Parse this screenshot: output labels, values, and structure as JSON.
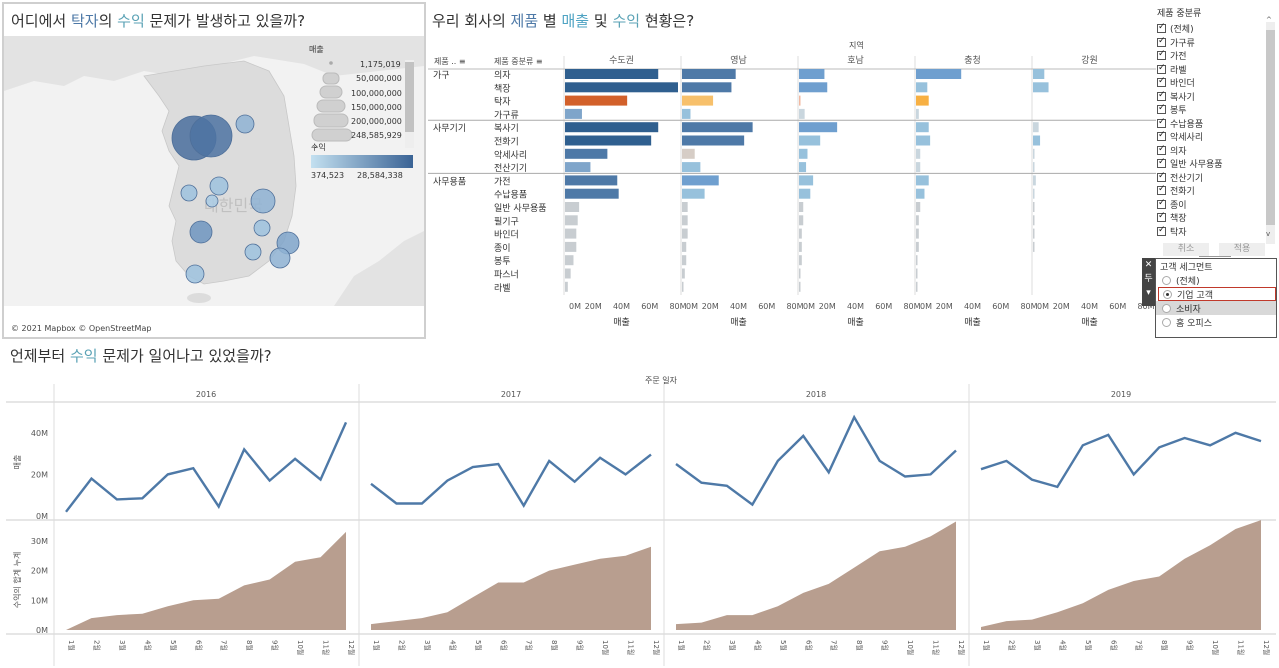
{
  "map": {
    "title_parts": [
      "어디에서 ",
      "탁자",
      "의 ",
      "수익",
      " 문제가 발생하고 있을까?"
    ],
    "watermark": "대한민국",
    "attribution": "© 2021 Mapbox © OpenStreetMap",
    "size_legend": {
      "title": "매출",
      "values": [
        "1,175,019",
        "50,000,000",
        "100,000,000",
        "150,000,000",
        "200,000,000",
        "248,585,929"
      ]
    },
    "color_legend": {
      "title": "수익",
      "min": "374,523",
      "max": "28,584,338"
    }
  },
  "bars": {
    "title_parts": [
      "우리 회사의 ",
      "제품",
      " 별 ",
      "매출",
      " 및 ",
      "수익",
      " 현황은?"
    ],
    "region_header": "지역",
    "col1_header": "제품 ..",
    "col2_header": "제품 중분류",
    "regions": [
      "수도권",
      "영남",
      "호남",
      "충청",
      "강원"
    ],
    "axis_ticks": [
      "0M",
      "20M",
      "40M",
      "60M",
      "80M"
    ],
    "axis_label": "매출",
    "categories": [
      {
        "name": "가구",
        "items": [
          "의자",
          "책장",
          "탁자",
          "가구류"
        ]
      },
      {
        "name": "사무기기",
        "items": [
          "복사기",
          "전화기",
          "악세사리",
          "전산기기"
        ]
      },
      {
        "name": "사무용품",
        "items": [
          "가전",
          "수납용품",
          "일반 사무용품",
          "필기구",
          "바인더",
          "종이",
          "봉투",
          "파스너",
          "라벨"
        ]
      }
    ]
  },
  "chart_data": [
    {
      "type": "bar",
      "title": "우리 회사의 제품 별 매출 및 수익 현황은?",
      "xlabel": "매출",
      "ylabel": "제품 중분류",
      "xlim": [
        0,
        80000000
      ],
      "categories": [
        "의자",
        "책장",
        "탁자",
        "가구류",
        "복사기",
        "전화기",
        "악세사리",
        "전산기기",
        "가전",
        "수납용품",
        "일반 사무용품",
        "필기구",
        "바인더",
        "종이",
        "봉투",
        "파스너",
        "라벨"
      ],
      "series": [
        {
          "name": "수도권",
          "values": [
            66000000,
            80000000,
            44000000,
            12000000,
            66000000,
            61000000,
            30000000,
            18000000,
            37000000,
            38000000,
            10000000,
            9000000,
            8000000,
            8000000,
            6000000,
            4000000,
            2000000
          ]
        },
        {
          "name": "영남",
          "values": [
            38000000,
            35000000,
            22000000,
            6000000,
            50000000,
            44000000,
            9000000,
            13000000,
            26000000,
            16000000,
            4000000,
            4000000,
            4000000,
            3000000,
            3000000,
            2000000,
            1000000
          ]
        },
        {
          "name": "호남",
          "values": [
            18000000,
            20000000,
            1000000,
            4000000,
            27000000,
            15000000,
            6000000,
            5000000,
            10000000,
            8000000,
            3000000,
            3000000,
            2000000,
            2000000,
            2000000,
            1000000,
            1000000
          ]
        },
        {
          "name": "충청",
          "values": [
            32000000,
            8000000,
            9000000,
            2000000,
            9000000,
            10000000,
            3000000,
            3000000,
            9000000,
            6000000,
            3000000,
            2000000,
            2000000,
            2000000,
            1000000,
            1000000,
            1000000
          ]
        },
        {
          "name": "강원",
          "values": [
            8000000,
            11000000,
            0,
            0,
            4000000,
            5000000,
            1000000,
            1000000,
            2000000,
            1000000,
            1000000,
            1000000,
            1000000,
            1000000,
            0,
            0,
            0
          ]
        }
      ]
    },
    {
      "type": "line",
      "title": "언제부터 수익 문제가 일어나고 있었을까?",
      "xlabel": "주문 일자",
      "ylabel": "매출",
      "ylim": [
        0,
        50000000
      ],
      "years": [
        "2016",
        "2017",
        "2018",
        "2019"
      ],
      "months": [
        "1월",
        "2월",
        "3월",
        "4월",
        "5월",
        "6월",
        "7월",
        "8월",
        "9월",
        "10월",
        "11월",
        "12월"
      ],
      "series": [
        {
          "name": "2016",
          "values": [
            2000000,
            18000000,
            8000000,
            8500000,
            20000000,
            23000000,
            4500000,
            32000000,
            17000000,
            27500000,
            17500000,
            45000000
          ]
        },
        {
          "name": "2017",
          "values": [
            15500000,
            6000000,
            6000000,
            17000000,
            23500000,
            25000000,
            5000000,
            26500000,
            16500000,
            28000000,
            20000000,
            29500000
          ]
        },
        {
          "name": "2018",
          "values": [
            25000000,
            16000000,
            14500000,
            5500000,
            26500000,
            38500000,
            21000000,
            47500000,
            26500000,
            19000000,
            20000000,
            31500000
          ]
        },
        {
          "name": "2019",
          "values": [
            22500000,
            26500000,
            17500000,
            14000000,
            34000000,
            39000000,
            20000000,
            33000000,
            37500000,
            34000000,
            40000000,
            36000000
          ]
        }
      ]
    },
    {
      "type": "area",
      "title": "",
      "xlabel": "",
      "ylabel": "수익의 합계 누계",
      "ylim": [
        0,
        35000000
      ],
      "years": [
        "2016",
        "2017",
        "2018",
        "2019"
      ],
      "months": [
        "1월",
        "2월",
        "3월",
        "4월",
        "5월",
        "6월",
        "7월",
        "8월",
        "9월",
        "10월",
        "11월",
        "12월"
      ],
      "series": [
        {
          "name": "2016",
          "values": [
            0,
            4000000,
            5000000,
            5500000,
            8000000,
            10000000,
            10500000,
            15000000,
            17000000,
            23000000,
            24500000,
            33000000
          ]
        },
        {
          "name": "2017",
          "values": [
            2000000,
            3000000,
            4000000,
            6000000,
            11000000,
            16000000,
            16000000,
            20000000,
            22000000,
            24000000,
            25000000,
            28000000
          ]
        },
        {
          "name": "2018",
          "values": [
            2000000,
            2500000,
            5000000,
            5000000,
            8000000,
            12500000,
            15500000,
            21000000,
            26500000,
            28000000,
            31500000,
            36500000
          ]
        },
        {
          "name": "2019",
          "values": [
            1000000,
            3000000,
            3500000,
            6000000,
            9000000,
            13500000,
            16500000,
            18000000,
            24000000,
            28500000,
            34000000,
            37000000
          ]
        }
      ]
    }
  ],
  "line": {
    "title_parts": [
      "언제부터 ",
      "수익",
      " 문제가 일어나고 있었을까?"
    ],
    "x_header": "주문 일자",
    "y1_label": "매출",
    "y1_ticks": [
      "40M",
      "20M",
      "0M"
    ],
    "y2_label": "수익의 합계 누계",
    "y2_ticks": [
      "30M",
      "20M",
      "10M",
      "0M"
    ]
  },
  "filter": {
    "title": "제품 중분류",
    "items": [
      "(전체)",
      "가구류",
      "가전",
      "라벨",
      "바인더",
      "복사기",
      "봉투",
      "수납용품",
      "악세사리",
      "의자",
      "일반 사무용품",
      "전산기기",
      "전화기",
      "종이",
      "책장",
      "탁자"
    ],
    "cancel": "취소",
    "apply": "적용"
  },
  "segment": {
    "title": "고객 세그먼트",
    "items": [
      "(전체)",
      "기업 고객",
      "소비자",
      "홈 오피스"
    ],
    "selected": "기업 고객",
    "side_label": "두"
  },
  "colors": {
    "dark_blue": "#2f5f8f",
    "mid_blue": "#6f9fcf",
    "light_blue": "#a9cfe4",
    "orange": "#d2602a",
    "light_orange": "#f7b862",
    "grey": "#cccccc",
    "line": "#4e79a7",
    "area": "#b89e8f"
  }
}
